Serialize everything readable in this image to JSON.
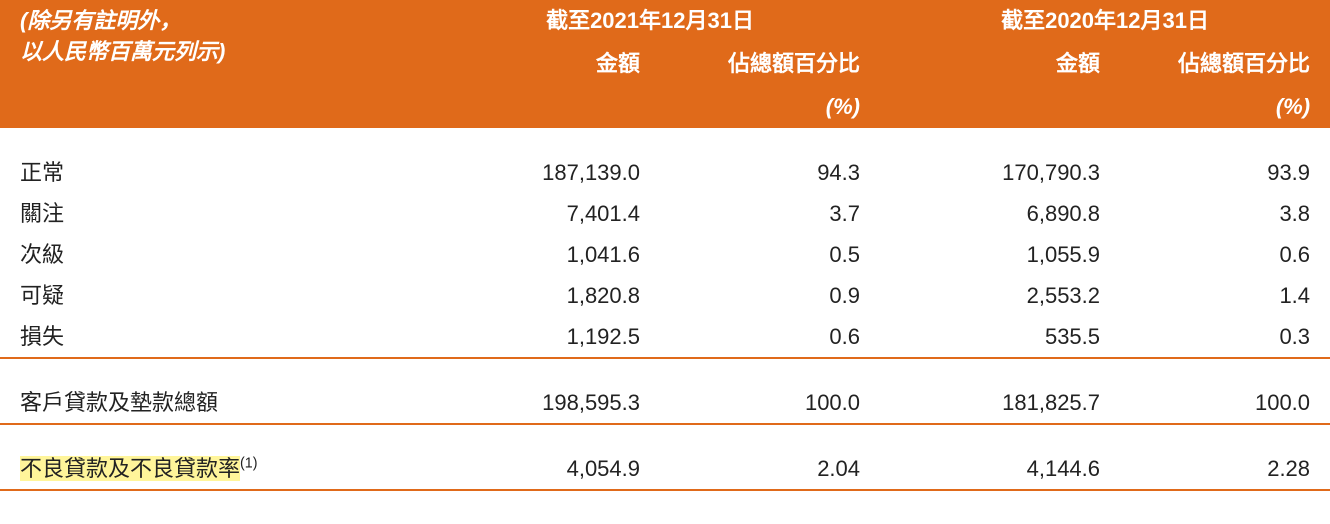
{
  "header": {
    "desc_line1": "(除另有註明外，",
    "desc_line2": "以人民幣百萬元列示)",
    "period1": "截至2021年12月31日",
    "period2": "截至2020年12月31日",
    "sub_amount": "金額",
    "sub_pct_line1": "佔總額百分比",
    "sub_pct_line2": "(%)"
  },
  "rows": [
    {
      "label": "正常",
      "a1": "187,139.0",
      "p1": "94.3",
      "a2": "170,790.3",
      "p2": "93.9"
    },
    {
      "label": "關注",
      "a1": "7,401.4",
      "p1": "3.7",
      "a2": "6,890.8",
      "p2": "3.8"
    },
    {
      "label": "次級",
      "a1": "1,041.6",
      "p1": "0.5",
      "a2": "1,055.9",
      "p2": "0.6"
    },
    {
      "label": "可疑",
      "a1": "1,820.8",
      "p1": "0.9",
      "a2": "2,553.2",
      "p2": "1.4"
    },
    {
      "label": "損失",
      "a1": "1,192.5",
      "p1": "0.6",
      "a2": "535.5",
      "p2": "0.3"
    }
  ],
  "total": {
    "label": "客戶貸款及墊款總額",
    "a1": "198,595.3",
    "p1": "100.0",
    "a2": "181,825.7",
    "p2": "100.0"
  },
  "npl": {
    "label": "不良貸款及不良貸款率",
    "sup": "(1)",
    "a1": "4,054.9",
    "p1": "2.04",
    "a2": "4,144.6",
    "p2": "2.28"
  },
  "colors": {
    "header_bg": "#e06a1a",
    "header_fg": "#ffffff",
    "rule": "#e06a1a",
    "highlight": "#fff59a",
    "text": "#222222"
  }
}
